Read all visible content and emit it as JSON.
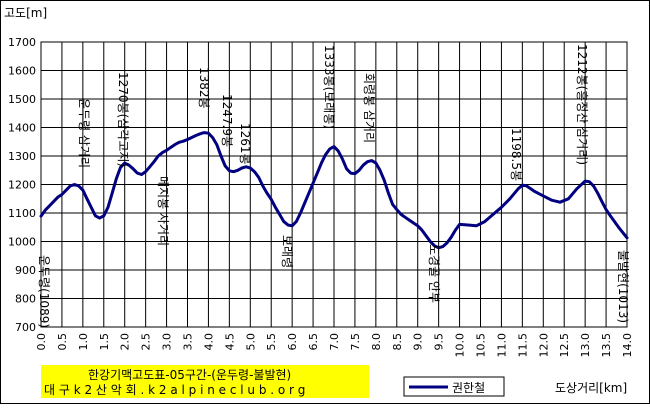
{
  "chart_data": {
    "type": "line",
    "ylabel": "고도[m]",
    "xlabel": "도상거리[km]",
    "xlim": [
      0,
      14
    ],
    "ylim": [
      700,
      1700
    ],
    "x_ticks": [
      "0.0",
      "0.5",
      "1.0",
      "1.5",
      "2.0",
      "2.5",
      "3.0",
      "3.5",
      "4.0",
      "4.5",
      "5.0",
      "5.5",
      "6.0",
      "6.5",
      "7.0",
      "7.5",
      "8.0",
      "8.5",
      "9.0",
      "9.5",
      "10.0",
      "10.5",
      "11.0",
      "11.5",
      "12.0",
      "12.5",
      "13.0",
      "13.5",
      "14.0"
    ],
    "y_ticks": [
      "700",
      "800",
      "900",
      "1000",
      "1100",
      "1200",
      "1300",
      "1400",
      "1500",
      "1600",
      "1700"
    ],
    "grid": true,
    "series": [
      {
        "name": "권한철",
        "color": "#000080",
        "x": [
          0.0,
          0.1,
          0.2,
          0.3,
          0.4,
          0.5,
          0.6,
          0.7,
          0.8,
          0.9,
          1.0,
          1.1,
          1.2,
          1.3,
          1.4,
          1.5,
          1.6,
          1.7,
          1.8,
          1.9,
          2.0,
          2.1,
          2.2,
          2.3,
          2.4,
          2.5,
          2.6,
          2.7,
          2.8,
          2.9,
          3.0,
          3.1,
          3.2,
          3.3,
          3.4,
          3.5,
          3.6,
          3.7,
          3.8,
          3.9,
          4.0,
          4.1,
          4.2,
          4.3,
          4.4,
          4.5,
          4.6,
          4.7,
          4.8,
          4.9,
          5.0,
          5.1,
          5.2,
          5.3,
          5.4,
          5.5,
          5.6,
          5.7,
          5.8,
          5.9,
          6.0,
          6.1,
          6.2,
          6.3,
          6.4,
          6.5,
          6.6,
          6.7,
          6.8,
          6.9,
          7.0,
          7.1,
          7.2,
          7.3,
          7.4,
          7.5,
          7.6,
          7.7,
          7.8,
          7.9,
          8.0,
          8.1,
          8.2,
          8.3,
          8.4,
          8.5,
          8.6,
          8.7,
          8.8,
          8.9,
          9.0,
          9.1,
          9.2,
          9.3,
          9.4,
          9.5,
          9.6,
          9.7,
          9.8,
          9.9,
          10.0,
          10.2,
          10.4,
          10.6,
          10.8,
          11.0,
          11.2,
          11.4,
          11.5,
          11.6,
          11.8,
          12.0,
          12.2,
          12.4,
          12.6,
          12.8,
          13.0,
          13.1,
          13.2,
          13.3,
          13.4,
          13.5,
          13.6,
          13.8,
          14.0
        ],
        "y": [
          1089,
          1110,
          1125,
          1140,
          1155,
          1165,
          1180,
          1195,
          1200,
          1195,
          1180,
          1150,
          1120,
          1090,
          1082,
          1090,
          1120,
          1170,
          1220,
          1260,
          1275,
          1268,
          1255,
          1240,
          1235,
          1245,
          1262,
          1280,
          1300,
          1312,
          1320,
          1330,
          1340,
          1348,
          1352,
          1358,
          1365,
          1372,
          1378,
          1382,
          1380,
          1365,
          1340,
          1300,
          1265,
          1248,
          1245,
          1250,
          1258,
          1262,
          1258,
          1245,
          1225,
          1195,
          1170,
          1148,
          1120,
          1095,
          1070,
          1058,
          1055,
          1070,
          1100,
          1135,
          1170,
          1205,
          1240,
          1275,
          1305,
          1325,
          1333,
          1318,
          1290,
          1255,
          1240,
          1238,
          1250,
          1268,
          1280,
          1284,
          1275,
          1250,
          1215,
          1170,
          1130,
          1112,
          1095,
          1085,
          1075,
          1065,
          1055,
          1040,
          1020,
          1000,
          985,
          978,
          982,
          995,
          1015,
          1040,
          1060,
          1058,
          1055,
          1070,
          1095,
          1120,
          1150,
          1185,
          1198,
          1195,
          1175,
          1160,
          1145,
          1138,
          1150,
          1185,
          1212,
          1210,
          1195,
          1170,
          1140,
          1112,
          1090,
          1050,
          1013
        ]
      }
    ],
    "annotations": [
      {
        "text": "운두령(1089)",
        "x": 0.0
      },
      {
        "text": "운두령 삼거리",
        "x": 0.9
      },
      {
        "text": "1270봉(삼각고지)",
        "x": 2.0
      },
      {
        "text": "메지봉 사거리",
        "x": 3.0
      },
      {
        "text": "1382봉",
        "x": 3.9
      },
      {
        "text": "1247.9봉",
        "x": 4.6
      },
      {
        "text": "1261봉",
        "x": 4.9
      },
      {
        "text": "보래령",
        "x": 6.0
      },
      {
        "text": "1333봉(보래봉)",
        "x": 7.0
      },
      {
        "text": "회령봉 삼거리",
        "x": 7.9
      },
      {
        "text": "도경골 안부",
        "x": 9.5
      },
      {
        "text": "1198.5봉",
        "x": 11.5
      },
      {
        "text": "1212봉(흥정산 삼거리)",
        "x": 13.0
      },
      {
        "text": "불발현(1013)",
        "x": 14.0
      }
    ]
  },
  "caption": {
    "line1": "한강기맥고도표-05구간-(운두령-불발현)",
    "line2": "대 구 k 2 산 악 회 . k 2 a l p i n e c l u b . o r g",
    "highlight_color": "#ffff00"
  },
  "legend": {
    "label": "권한철"
  }
}
